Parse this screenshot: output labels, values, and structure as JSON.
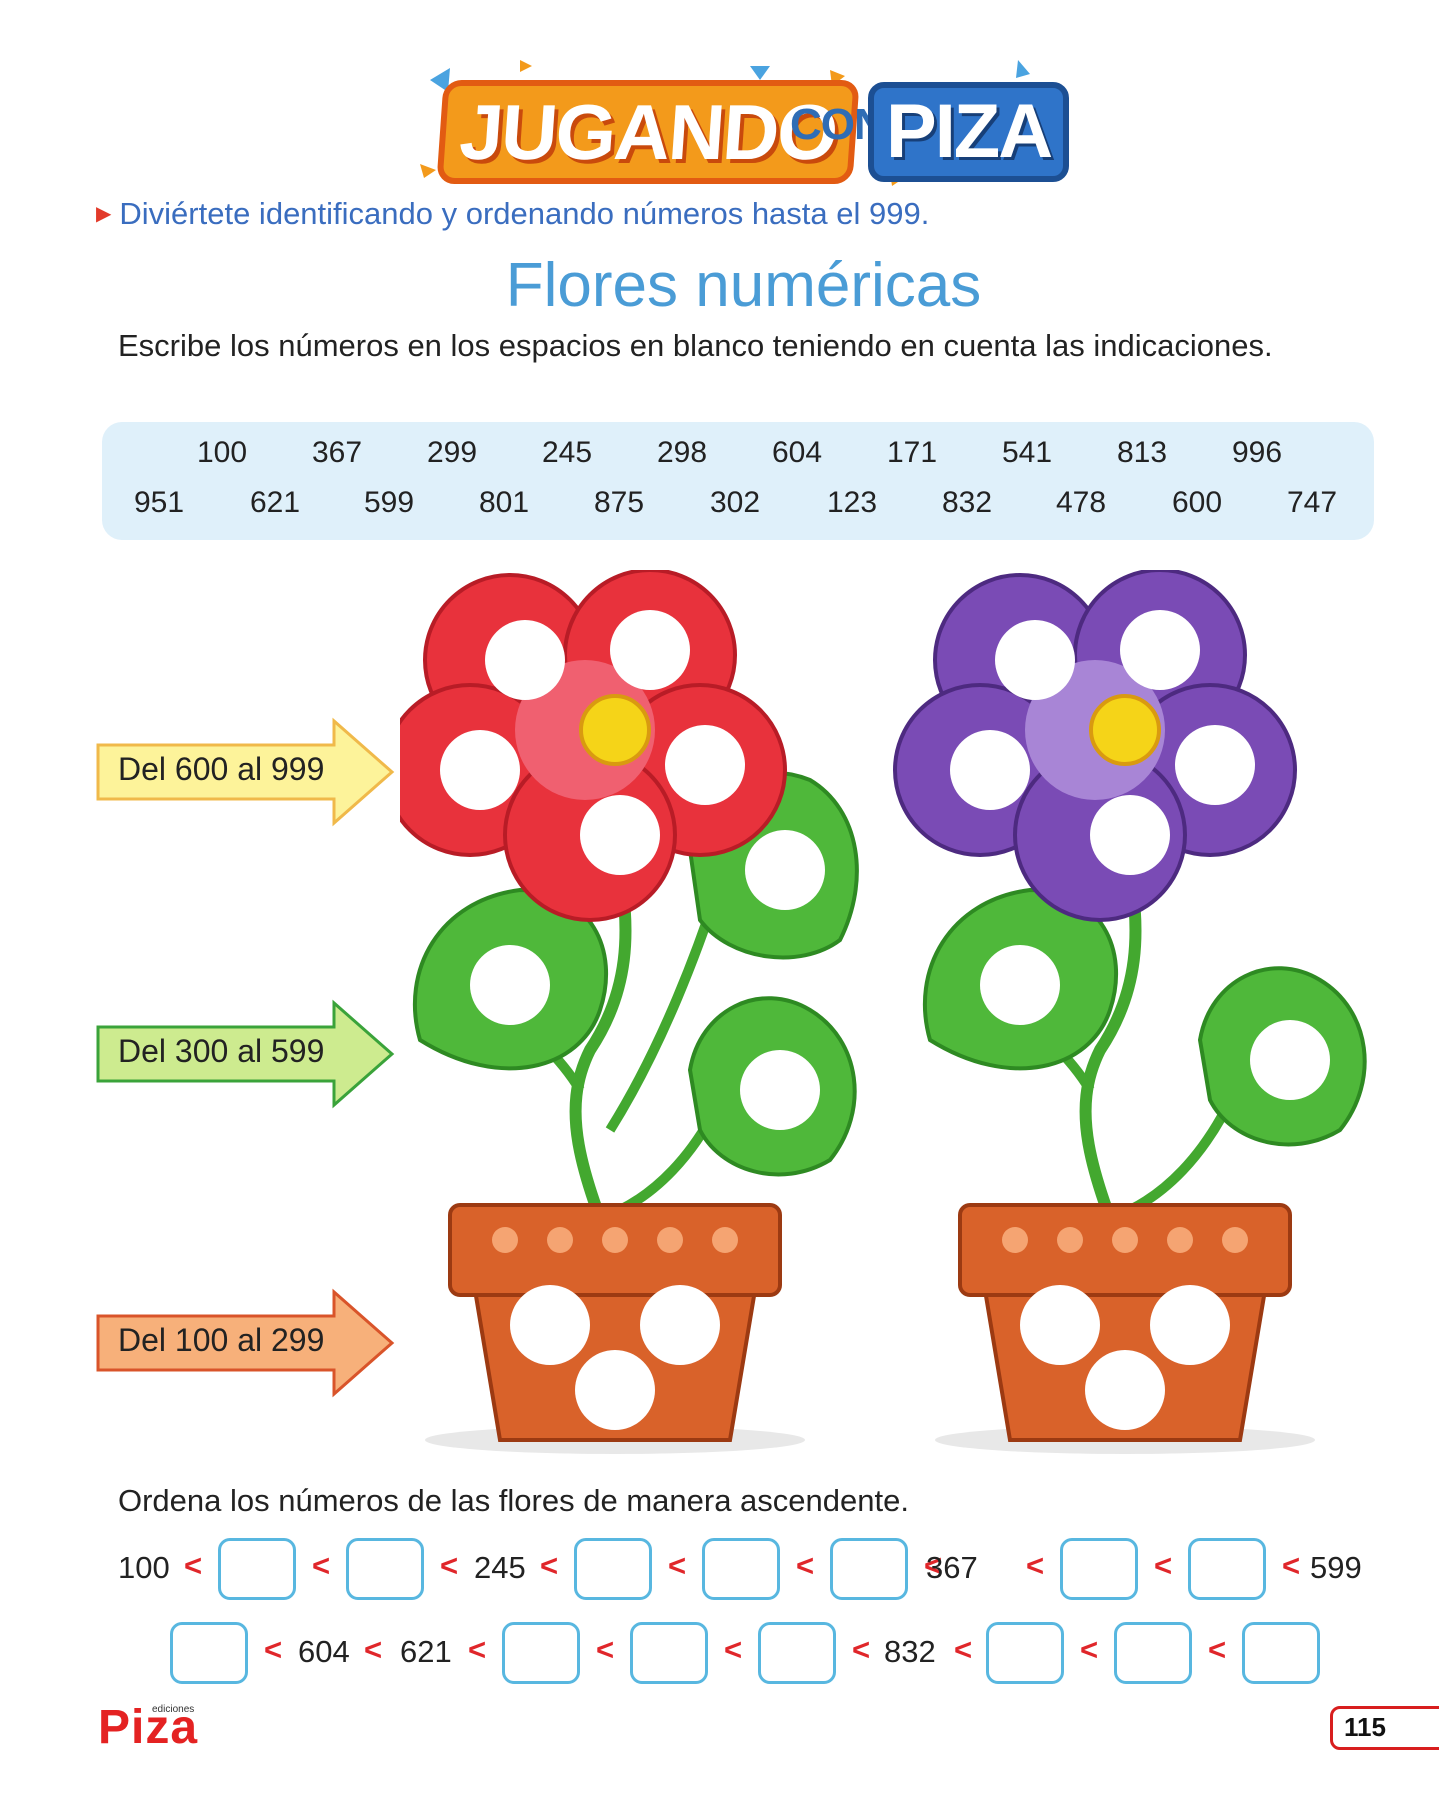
{
  "header": {
    "logo_part1": "JUGANDO",
    "logo_part2": "CON",
    "logo_part3": "PIZA",
    "objective": "Diviértete identificando y ordenando números hasta el 999."
  },
  "title": "Flores numéricas",
  "instruction": "Escribe los números en los espacios en blanco teniendo en cuenta las indicaciones.",
  "number_bank": {
    "row1": [
      "100",
      "367",
      "299",
      "245",
      "298",
      "604",
      "171",
      "541",
      "813",
      "996"
    ],
    "row2": [
      "951",
      "621",
      "599",
      "801",
      "875",
      "302",
      "123",
      "832",
      "478",
      "600",
      "747"
    ]
  },
  "arrows": [
    {
      "label": "Del 600 al 999",
      "fill": "#fdf39a",
      "stroke": "#f0b94a"
    },
    {
      "label": "Del 300 al 599",
      "fill": "#cdeb8f",
      "stroke": "#3aa33a"
    },
    {
      "label": "Del 100 al 299",
      "fill": "#f7b07a",
      "stroke": "#d9542a"
    }
  ],
  "colors": {
    "flower_left": "#e8323c",
    "flower_right": "#7a4bb5",
    "leaf": "#4fb83a",
    "pot": "#d9622a"
  },
  "order_instruction": "Ordena los números de las flores de manera ascendente.",
  "sequence_row1": [
    "100",
    "",
    "",
    "245",
    "",
    "",
    "",
    "367",
    "",
    "",
    "599"
  ],
  "sequence_row2": [
    "",
    "604",
    "621",
    "",
    "",
    "",
    "832",
    "",
    "",
    ""
  ],
  "less_than": "<",
  "footer": {
    "brand": "Piza",
    "brand_small": "ediciones",
    "page": "115"
  }
}
